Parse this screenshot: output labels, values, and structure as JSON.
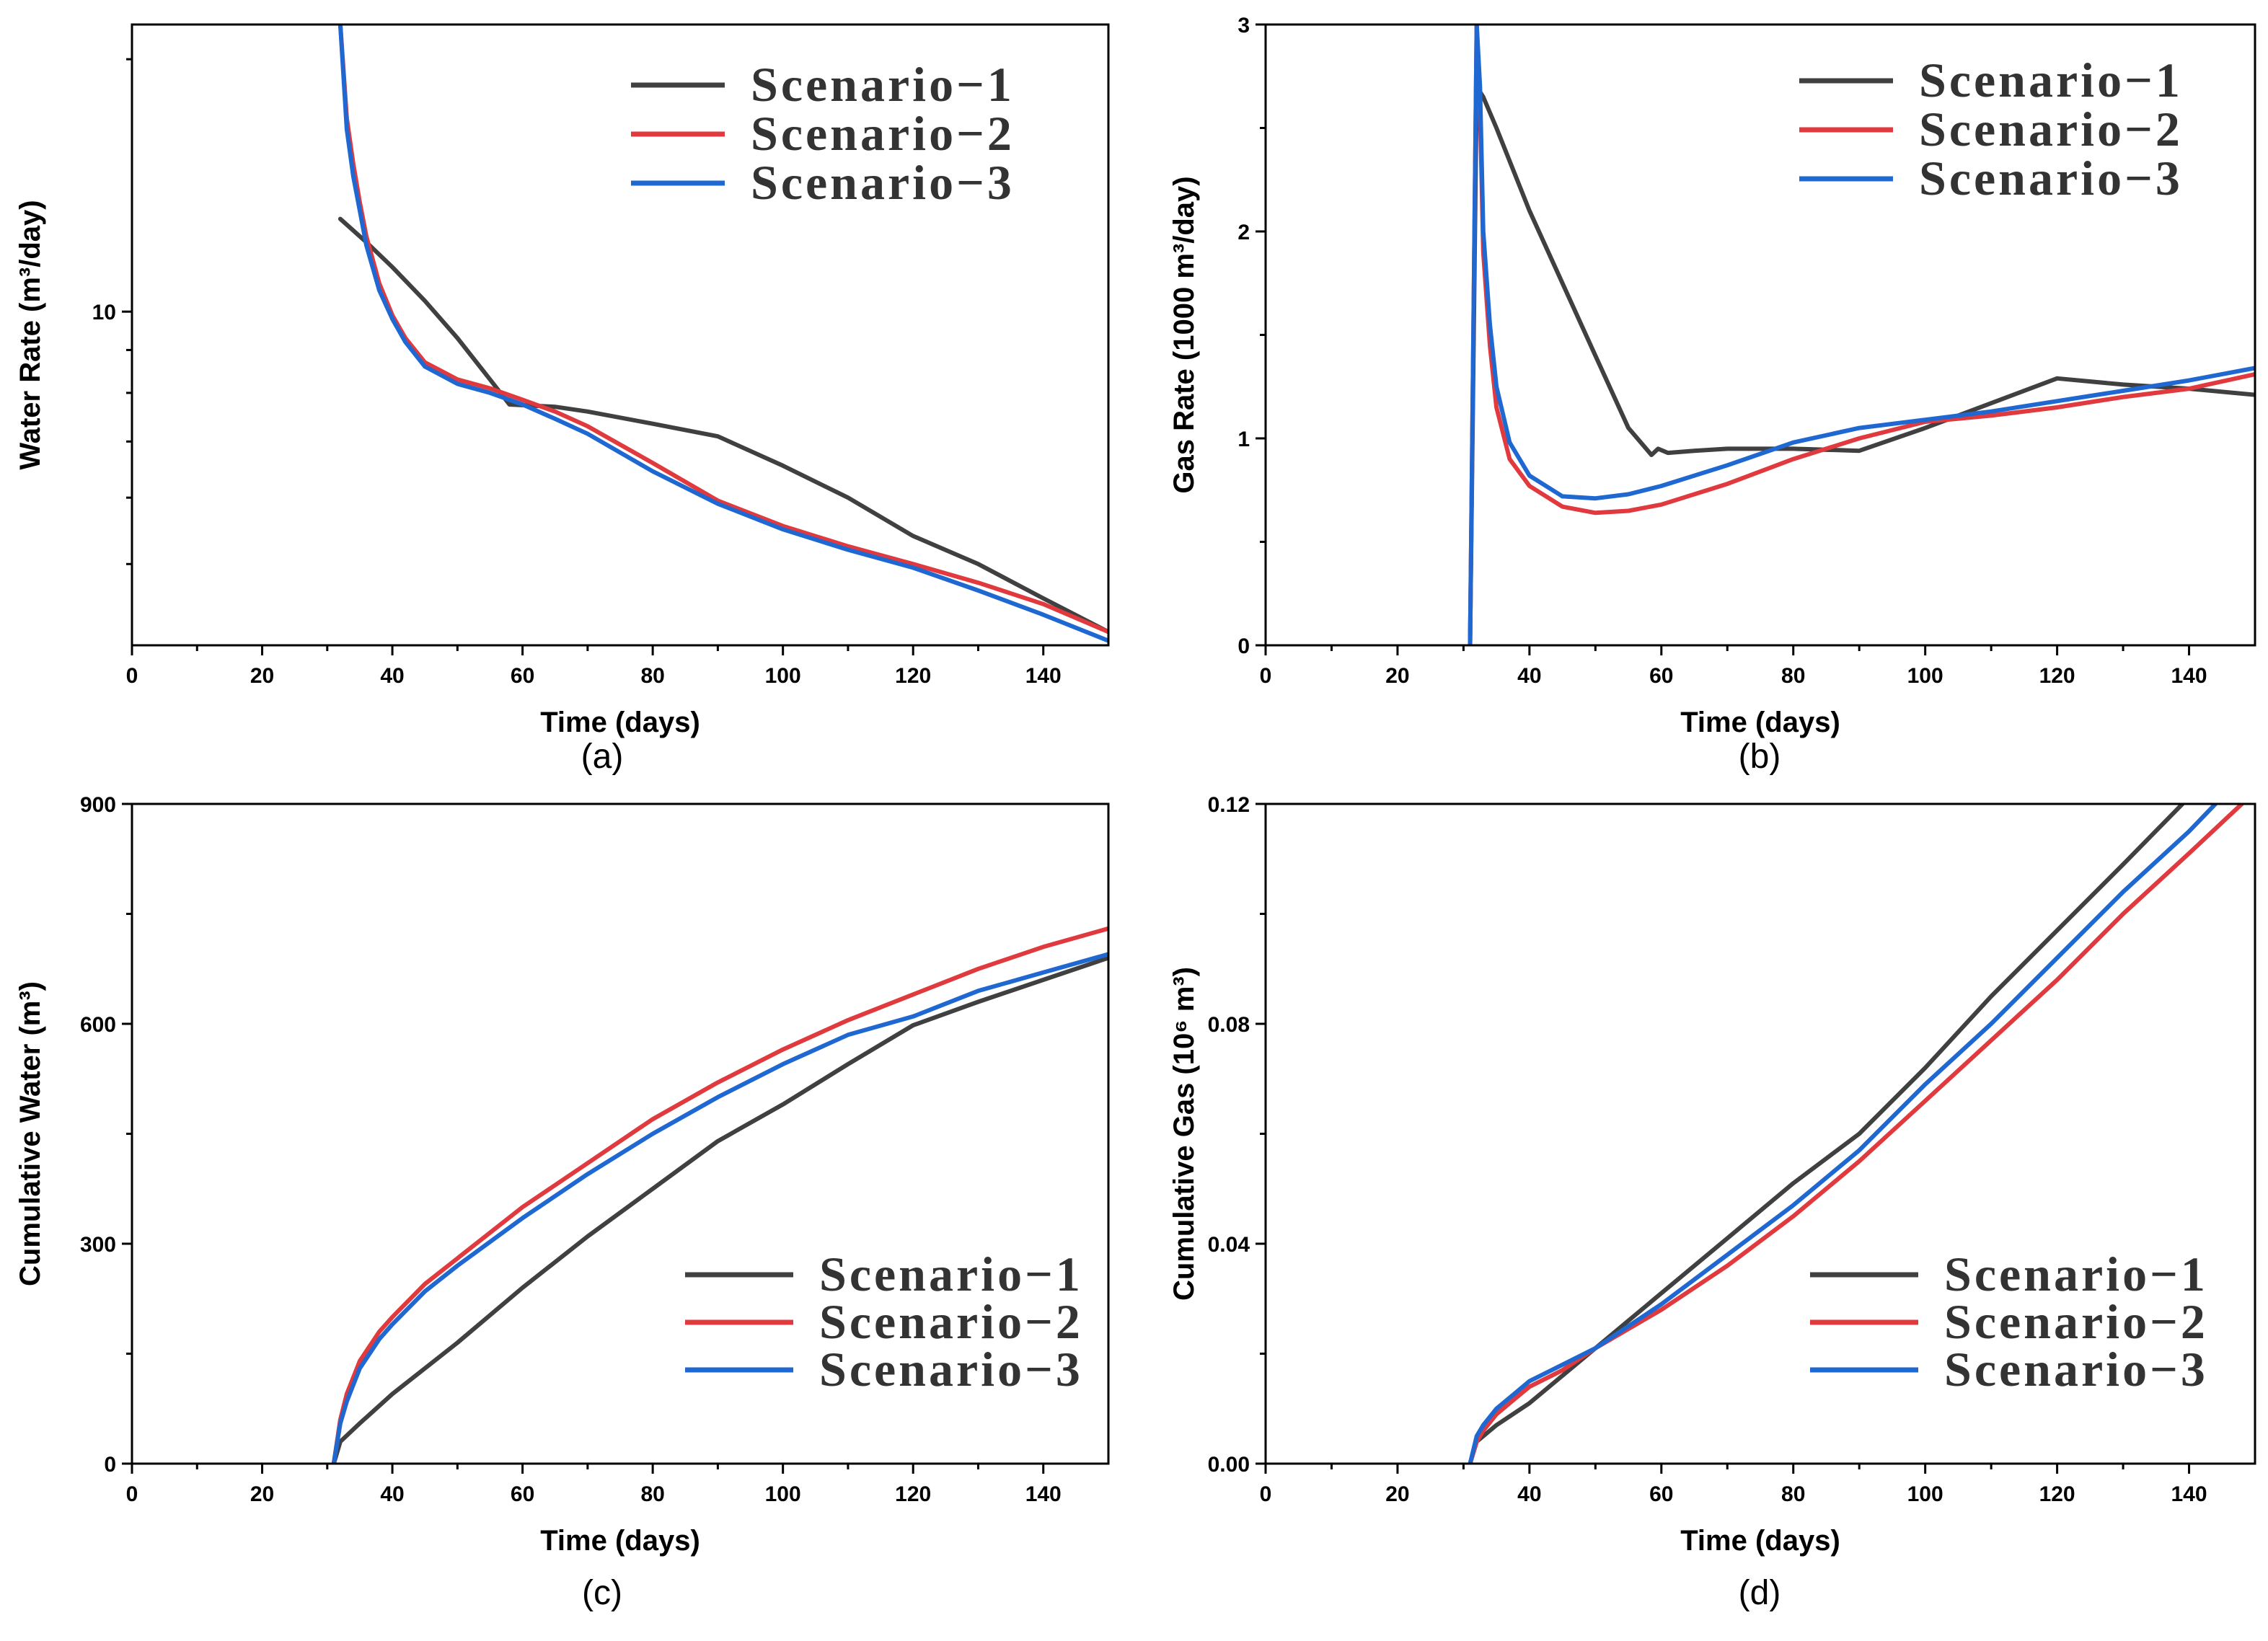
{
  "colors": {
    "scenario_1": "#404040",
    "scenario_2": "#e03a3e",
    "scenario_3": "#1f68d1"
  },
  "chart_data": [
    {
      "id": "a",
      "type": "line",
      "panel_label": "(a)",
      "xlabel": "Time (days)",
      "ylabel": "Water Rate (m³/day)",
      "y_scale": "log",
      "xlim": [
        0,
        150
      ],
      "ylim": [
        4,
        22
      ],
      "x_ticks": [
        0,
        20,
        40,
        60,
        80,
        100,
        120,
        140
      ],
      "x_tick_labels": [
        "0",
        "20",
        "40",
        "60",
        "80",
        "100",
        "120",
        "140"
      ],
      "y_ticks": [
        10
      ],
      "y_tick_labels": [
        "10"
      ],
      "legend": {
        "position": "top-right",
        "entries": [
          "Scenario−1",
          "Scenario−2",
          "Scenario−3"
        ]
      },
      "series": [
        {
          "name": "Scenario−1",
          "x": [
            32,
            36,
            40,
            45,
            50,
            55,
            58,
            65,
            70,
            80,
            90,
            100,
            110,
            120,
            130,
            140,
            150
          ],
          "y": [
            12.9,
            12.1,
            11.3,
            10.3,
            9.3,
            8.3,
            7.75,
            7.7,
            7.6,
            7.35,
            7.1,
            6.55,
            6.0,
            5.4,
            5.0,
            4.55,
            4.15
          ]
        },
        {
          "name": "Scenario−2",
          "x": [
            32,
            33,
            34,
            35,
            36,
            38,
            40,
            42,
            45,
            50,
            55,
            60,
            65,
            70,
            80,
            90,
            100,
            110,
            120,
            130,
            140,
            150
          ],
          "y": [
            22,
            17,
            15,
            13.5,
            12.3,
            10.8,
            9.9,
            9.3,
            8.7,
            8.3,
            8.1,
            7.85,
            7.6,
            7.3,
            6.6,
            5.95,
            5.55,
            5.25,
            5.0,
            4.75,
            4.48,
            4.15
          ]
        },
        {
          "name": "Scenario−3",
          "x": [
            32,
            33,
            34,
            35,
            36,
            38,
            40,
            42,
            45,
            50,
            55,
            60,
            65,
            70,
            80,
            90,
            100,
            110,
            120,
            130,
            140,
            150
          ],
          "y": [
            22,
            16.5,
            14.5,
            13.2,
            12.0,
            10.6,
            9.8,
            9.2,
            8.6,
            8.2,
            8.0,
            7.75,
            7.45,
            7.15,
            6.45,
            5.9,
            5.5,
            5.2,
            4.95,
            4.65,
            4.35,
            4.05
          ]
        }
      ]
    },
    {
      "id": "b",
      "type": "line",
      "panel_label": "(b)",
      "xlabel": "Time (days)",
      "ylabel": "Gas Rate (1000 m³/day)",
      "y_scale": "linear",
      "xlim": [
        0,
        150
      ],
      "ylim": [
        0,
        3
      ],
      "x_ticks": [
        0,
        20,
        40,
        60,
        80,
        100,
        120,
        140
      ],
      "x_tick_labels": [
        "0",
        "20",
        "40",
        "60",
        "80",
        "100",
        "120",
        "140"
      ],
      "y_ticks": [
        0,
        1,
        2,
        3
      ],
      "y_tick_labels": [
        "0",
        "1",
        "2",
        "3"
      ],
      "legend": {
        "position": "top-right",
        "entries": [
          "Scenario−1",
          "Scenario−2",
          "Scenario−3"
        ]
      },
      "series": [
        {
          "name": "Scenario−1",
          "x": [
            31,
            32,
            33,
            35,
            40,
            45,
            50,
            55,
            58.5,
            59.5,
            61,
            65,
            70,
            80,
            90,
            100,
            110,
            120,
            130,
            140,
            150
          ],
          "y": [
            0,
            2.7,
            2.65,
            2.5,
            2.1,
            1.75,
            1.4,
            1.05,
            0.92,
            0.95,
            0.93,
            0.94,
            0.95,
            0.95,
            0.94,
            1.05,
            1.17,
            1.29,
            1.26,
            1.24,
            1.21
          ]
        },
        {
          "name": "Scenario−2",
          "x": [
            31,
            32,
            32.5,
            33,
            34,
            35,
            37,
            40,
            45,
            50,
            55,
            60,
            70,
            80,
            90,
            100,
            110,
            120,
            130,
            140,
            150
          ],
          "y": [
            0,
            3.0,
            2.6,
            1.9,
            1.45,
            1.15,
            0.9,
            0.77,
            0.67,
            0.64,
            0.65,
            0.68,
            0.78,
            0.9,
            1.0,
            1.08,
            1.11,
            1.15,
            1.2,
            1.24,
            1.31
          ]
        },
        {
          "name": "Scenario−3",
          "x": [
            31,
            32,
            32.5,
            33,
            34,
            35,
            37,
            40,
            45,
            50,
            55,
            60,
            70,
            80,
            90,
            100,
            110,
            120,
            130,
            140,
            150
          ],
          "y": [
            0,
            3.0,
            2.7,
            2.0,
            1.55,
            1.25,
            0.98,
            0.82,
            0.72,
            0.71,
            0.73,
            0.77,
            0.87,
            0.98,
            1.05,
            1.09,
            1.13,
            1.18,
            1.23,
            1.28,
            1.34
          ]
        }
      ]
    },
    {
      "id": "c",
      "type": "line",
      "panel_label": "(c)",
      "xlabel": "Time (days)",
      "ylabel": "Cumulative Water (m³)",
      "y_scale": "linear",
      "xlim": [
        0,
        150
      ],
      "ylim": [
        0,
        900
      ],
      "x_ticks": [
        0,
        20,
        40,
        60,
        80,
        100,
        120,
        140
      ],
      "x_tick_labels": [
        "0",
        "20",
        "40",
        "60",
        "80",
        "100",
        "120",
        "140"
      ],
      "y_ticks": [
        0,
        300,
        600,
        900
      ],
      "y_tick_labels": [
        "0",
        "300",
        "600",
        "900"
      ],
      "legend": {
        "position": "bottom-right",
        "entries": [
          "Scenario−1",
          "Scenario−2",
          "Scenario−3"
        ]
      },
      "series": [
        {
          "name": "Scenario−1",
          "x": [
            31,
            32,
            35,
            40,
            50,
            60,
            70,
            80,
            90,
            100,
            110,
            120,
            130,
            140,
            150
          ],
          "y": [
            0,
            30,
            55,
            95,
            165,
            240,
            310,
            375,
            440,
            490,
            545,
            598,
            630,
            660,
            690
          ]
        },
        {
          "name": "Scenario−2",
          "x": [
            31,
            32,
            33,
            35,
            38,
            40,
            45,
            50,
            60,
            70,
            80,
            90,
            100,
            110,
            120,
            130,
            140,
            150
          ],
          "y": [
            0,
            60,
            95,
            140,
            180,
            200,
            245,
            280,
            350,
            410,
            470,
            520,
            565,
            605,
            640,
            675,
            705,
            730
          ]
        },
        {
          "name": "Scenario−3",
          "x": [
            31,
            32,
            33,
            35,
            38,
            40,
            45,
            50,
            60,
            70,
            80,
            90,
            100,
            110,
            120,
            130,
            140,
            150
          ],
          "y": [
            0,
            55,
            85,
            130,
            170,
            190,
            235,
            270,
            335,
            395,
            450,
            500,
            545,
            585,
            610,
            645,
            670,
            695
          ]
        }
      ]
    },
    {
      "id": "d",
      "type": "line",
      "panel_label": "(d)",
      "xlabel": "Time (days)",
      "ylabel": "Cumulative Gas (10⁶ m³)",
      "y_scale": "linear",
      "xlim": [
        0,
        150
      ],
      "ylim": [
        0,
        0.12
      ],
      "x_ticks": [
        0,
        20,
        40,
        60,
        80,
        100,
        120,
        140
      ],
      "x_tick_labels": [
        "0",
        "20",
        "40",
        "60",
        "80",
        "100",
        "120",
        "140"
      ],
      "y_ticks": [
        0,
        0.04,
        0.08,
        0.12
      ],
      "y_tick_labels": [
        "0.00",
        "0.04",
        "0.08",
        "0.12"
      ],
      "legend": {
        "position": "bottom-right",
        "entries": [
          "Scenario−1",
          "Scenario−2",
          "Scenario−3"
        ]
      },
      "series": [
        {
          "name": "Scenario−1",
          "x": [
            31,
            32,
            35,
            40,
            50,
            60,
            70,
            80,
            90,
            100,
            110,
            120,
            130,
            139
          ],
          "y": [
            0,
            0.004,
            0.007,
            0.011,
            0.021,
            0.031,
            0.041,
            0.051,
            0.06,
            0.072,
            0.085,
            0.097,
            0.109,
            0.12
          ]
        },
        {
          "name": "Scenario−2",
          "x": [
            31,
            32,
            33,
            35,
            38,
            40,
            45,
            50,
            60,
            70,
            80,
            90,
            100,
            110,
            120,
            130,
            140,
            148
          ],
          "y": [
            0,
            0.004,
            0.006,
            0.009,
            0.012,
            0.014,
            0.017,
            0.021,
            0.028,
            0.036,
            0.045,
            0.055,
            0.066,
            0.077,
            0.088,
            0.1,
            0.111,
            0.12
          ]
        },
        {
          "name": "Scenario−3",
          "x": [
            31,
            32,
            33,
            35,
            38,
            40,
            45,
            50,
            60,
            70,
            80,
            90,
            100,
            110,
            120,
            130,
            140,
            144
          ],
          "y": [
            0,
            0.005,
            0.007,
            0.01,
            0.013,
            0.015,
            0.018,
            0.021,
            0.029,
            0.038,
            0.047,
            0.057,
            0.069,
            0.08,
            0.092,
            0.104,
            0.115,
            0.12
          ]
        }
      ]
    }
  ]
}
